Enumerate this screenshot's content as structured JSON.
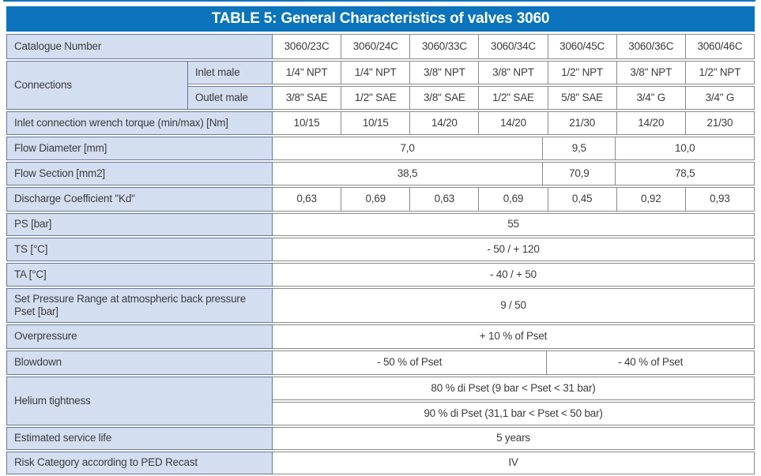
{
  "title": "TABLE 5: General Characteristics of valves 3060",
  "colors": {
    "header_blue": "#0b74bc",
    "label_blue": "#d4def1",
    "label_border": "#67779a",
    "cell_border": "#8a8a8a",
    "text": "#3c3c3c"
  },
  "rows": {
    "catalogue": {
      "label": "Catalogue Number",
      "values": [
        "3060/23C",
        "3060/24C",
        "3060/33C",
        "3060/34C",
        "3060/45C",
        "3060/36C",
        "3060/46C"
      ]
    },
    "connections": {
      "label": "Connections",
      "inlet_label": "Inlet male",
      "inlet": [
        "1/4\" NPT",
        "1/4\" NPT",
        "3/8\" NPT",
        "3/8\" NPT",
        "1/2\" NPT",
        "3/8\" NPT",
        "1/2\" NPT"
      ],
      "outlet_label": "Outlet male",
      "outlet": [
        "3/8\" SAE",
        "1/2\" SAE",
        "3/8\" SAE",
        "1/2\" SAE",
        "5/8\" SAE",
        "3/4\" G",
        "3/4\" G"
      ]
    },
    "torque": {
      "label": "Inlet connection wrench torque (min/max) [Nm]",
      "values": [
        "10/15",
        "10/15",
        "14/20",
        "14/20",
        "21/30",
        "14/20",
        "21/30"
      ]
    },
    "flow_diameter": {
      "label": "Flow Diameter [mm]",
      "cells": [
        {
          "text": "7,0",
          "span": 4
        },
        {
          "text": "9,5",
          "span": 1
        },
        {
          "text": "10,0",
          "span": 2
        }
      ]
    },
    "flow_section": {
      "label": "Flow Section [mm2]",
      "cells": [
        {
          "text": "38,5",
          "span": 4
        },
        {
          "text": "70,9",
          "span": 1
        },
        {
          "text": "78,5",
          "span": 2
        }
      ]
    },
    "discharge": {
      "label": "Discharge Coefficient \"Kd\"",
      "values": [
        "0,63",
        "0,69",
        "0,63",
        "0,69",
        "0,45",
        "0,92",
        "0,93"
      ]
    },
    "ps": {
      "label": "PS [bar]",
      "value": "55"
    },
    "ts": {
      "label": "TS [°C]",
      "value": "- 50  /  + 120"
    },
    "ta": {
      "label": "TA [°C]",
      "value": "- 40  /  + 50"
    },
    "set_pressure": {
      "label": "Set Pressure Range at atmospheric back pressure Pset [bar]",
      "value": "9  /  50"
    },
    "overpressure": {
      "label": "Overpressure",
      "value": "+ 10 % of Pset"
    },
    "blowdown": {
      "label": "Blowdown",
      "cells": [
        {
          "text": "- 50 % of Pset",
          "span": 4
        },
        {
          "text": "- 40 % of Pset",
          "span": 3
        }
      ]
    },
    "helium": {
      "label": "Helium tightness",
      "line1": "80 % di Pset   (9 bar < Pset < 31 bar)",
      "line2": "90 % di Pset   (31,1 bar < Pset < 50 bar)"
    },
    "service_life": {
      "label": "Estimated service life",
      "value": "5 years"
    },
    "risk_category": {
      "label": "Risk Category according to PED Recast",
      "value": "IV"
    }
  }
}
